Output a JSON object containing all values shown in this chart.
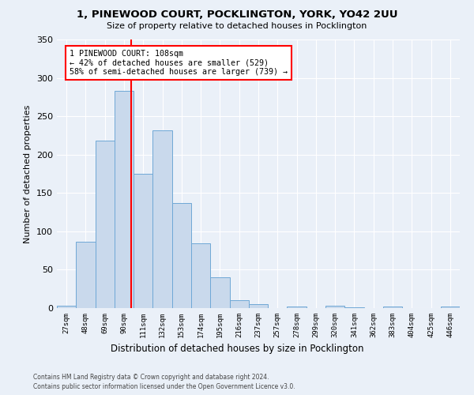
{
  "title": "1, PINEWOOD COURT, POCKLINGTON, YORK, YO42 2UU",
  "subtitle": "Size of property relative to detached houses in Pocklington",
  "xlabel": "Distribution of detached houses by size in Pocklington",
  "ylabel": "Number of detached properties",
  "bar_values": [
    3,
    86,
    218,
    283,
    175,
    232,
    137,
    84,
    40,
    10,
    5,
    0,
    2,
    0,
    3,
    1,
    0,
    2,
    0,
    0,
    2
  ],
  "bin_labels": [
    "27sqm",
    "48sqm",
    "69sqm",
    "90sqm",
    "111sqm",
    "132sqm",
    "153sqm",
    "174sqm",
    "195sqm",
    "216sqm",
    "237sqm",
    "257sqm",
    "278sqm",
    "299sqm",
    "320sqm",
    "341sqm",
    "362sqm",
    "383sqm",
    "404sqm",
    "425sqm",
    "446sqm"
  ],
  "bar_color": "#c9d9ec",
  "bar_edge_color": "#6fa8d6",
  "annotation_text": "1 PINEWOOD COURT: 108sqm\n← 42% of detached houses are smaller (529)\n58% of semi-detached houses are larger (739) →",
  "annotation_box_color": "white",
  "annotation_box_edge": "red",
  "vline_color": "red",
  "ylim": [
    0,
    350
  ],
  "yticks": [
    0,
    50,
    100,
    150,
    200,
    250,
    300,
    350
  ],
  "background_color": "#eaf0f8",
  "footer_line1": "Contains HM Land Registry data © Crown copyright and database right 2024.",
  "footer_line2": "Contains public sector information licensed under the Open Government Licence v3.0."
}
